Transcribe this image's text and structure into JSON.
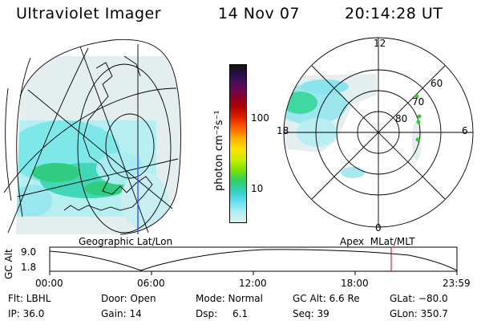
{
  "header": {
    "title": "Ultraviolet Imager",
    "date": "14 Nov 07",
    "time": "20:14:28 UT"
  },
  "geo_map": {
    "caption": "Geographic Lat/Lon"
  },
  "colorbar": {
    "unit_label": "photon cm⁻²s⁻¹",
    "ticks": [
      "100",
      "10"
    ],
    "colors": [
      "#101010",
      "#2a1050",
      "#5a0a5a",
      "#8a0030",
      "#b00000",
      "#e02000",
      "#ff6000",
      "#ffb000",
      "#ffe000",
      "#c8f000",
      "#7ee000",
      "#30d060",
      "#30d0c0",
      "#60e0f0",
      "#b0ecf2",
      "#e0f0f2"
    ]
  },
  "polar_map": {
    "caption": "Apex  MLat/MLT",
    "mlt_labels": {
      "top": "12",
      "left": "18",
      "right": "6",
      "bottom": "0"
    },
    "lat_labels": [
      "60",
      "70",
      "80"
    ]
  },
  "timeline": {
    "ylabel": "GC Alt",
    "yticks": [
      "9.0",
      "1.8"
    ],
    "xticks": [
      "00:00",
      "06:00",
      "12:00",
      "18:00",
      "23:59"
    ],
    "marker_color": "#cc0000"
  },
  "info": {
    "row1": {
      "filter": "Flt: LBHL",
      "door": "Door: Open",
      "mode": "Mode: Normal",
      "gc_alt": "GC Alt: 6.6 Re",
      "glat": "GLat: −80.0"
    },
    "row2": {
      "ip": "IP: 36.0",
      "gain": "Gain: 14",
      "dsp_label": "Dsp:",
      "dsp_value": "6.1",
      "seq": "Seq: 39",
      "glon": "GLon: 350.7"
    }
  }
}
